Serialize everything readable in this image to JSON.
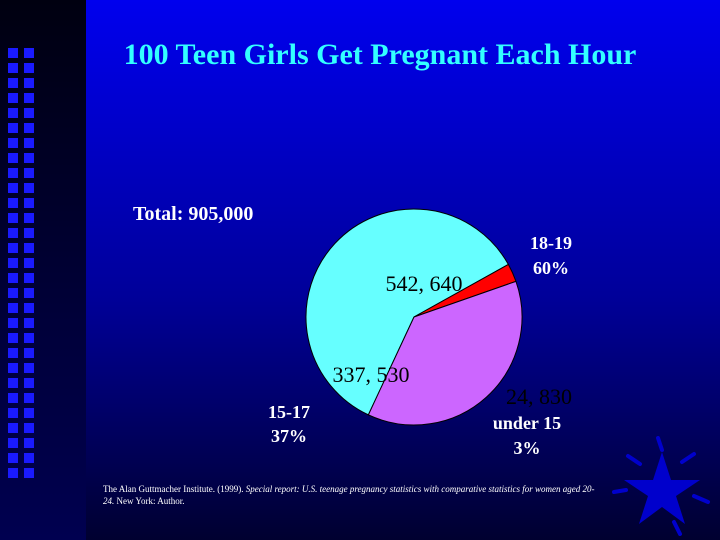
{
  "slide": {
    "title": "100 Teen Girls Get Pregnant Each Hour",
    "citation": {
      "author": "The Alan Guttmacher Institute. (1999).",
      "title_italic": "Special report: U.S. teenage pregnancy statistics with comparative statistics for women aged 20-24.",
      "publisher": "New York: Author."
    }
  },
  "chart_data": {
    "type": "pie",
    "title": "",
    "total_label": "Total: 905,000",
    "slices": [
      {
        "label": "18-19",
        "percent_label": "60%",
        "value": 542640,
        "value_label": "542, 640",
        "color": "#66ffff"
      },
      {
        "label": "under 15",
        "percent_label": "3%",
        "value": 24830,
        "value_label": "24, 830",
        "color": "#ff0000"
      },
      {
        "label": "15-17",
        "percent_label": "37%",
        "value": 337530,
        "value_label": "337, 530",
        "color": "#cc66ff"
      }
    ]
  },
  "colors": {
    "background": "#0000ee",
    "title": "#33ffff",
    "text": "#ffffff",
    "star": "#0000cc"
  },
  "icons": [
    "star-icon"
  ]
}
